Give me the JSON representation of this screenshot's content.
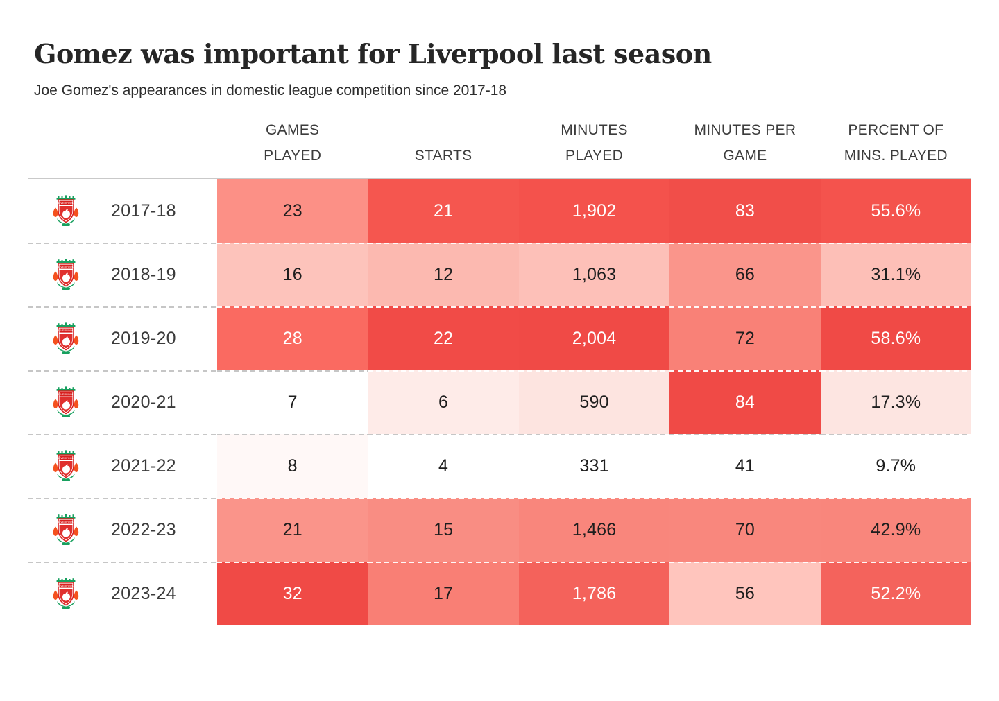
{
  "page": {
    "title": "Gomez was important for Liverpool last season",
    "subtitle": "Joe Gomez's appearances in domestic league competition since 2017-18"
  },
  "table": {
    "columns": [
      {
        "id": "games-played",
        "label": "GAMES PLAYED",
        "lines": [
          "GAMES",
          "PLAYED"
        ]
      },
      {
        "id": "starts",
        "label": "STARTS",
        "lines": [
          "STARTS"
        ]
      },
      {
        "id": "minutes-played",
        "label": "MINUTES PLAYED",
        "lines": [
          "MINUTES",
          "PLAYED"
        ]
      },
      {
        "id": "minutes-per-game",
        "label": "MINUTES PER GAME",
        "lines": [
          "MINUTES PER",
          "GAME"
        ]
      },
      {
        "id": "percent-of-mins",
        "label": "PERCENT OF MINS. PLAYED",
        "lines": [
          "PERCENT OF",
          "MINS. PLAYED"
        ]
      }
    ],
    "rows": [
      {
        "season": "2017-18",
        "club_icon": "liverpool-crest",
        "values": [
          {
            "text": "23",
            "bg": "#FC9086",
            "fg": "#1e1e1e"
          },
          {
            "text": "21",
            "bg": "#F5564F",
            "fg": "#ffffff"
          },
          {
            "text": "1,902",
            "bg": "#F4524C",
            "fg": "#ffffff"
          },
          {
            "text": "83",
            "bg": "#F14E49",
            "fg": "#ffffff"
          },
          {
            "text": "55.6%",
            "bg": "#F4534D",
            "fg": "#ffffff"
          }
        ]
      },
      {
        "season": "2018-19",
        "club_icon": "liverpool-crest",
        "values": [
          {
            "text": "16",
            "bg": "#FDC3BB",
            "fg": "#1e1e1e"
          },
          {
            "text": "12",
            "bg": "#FCB9B0",
            "fg": "#1e1e1e"
          },
          {
            "text": "1,063",
            "bg": "#FDC0B8",
            "fg": "#1e1e1e"
          },
          {
            "text": "66",
            "bg": "#FA958B",
            "fg": "#1e1e1e"
          },
          {
            "text": "31.1%",
            "bg": "#FDBFB7",
            "fg": "#1e1e1e"
          }
        ]
      },
      {
        "season": "2019-20",
        "club_icon": "liverpool-crest",
        "values": [
          {
            "text": "28",
            "bg": "#FA6A61",
            "fg": "#ffffff"
          },
          {
            "text": "22",
            "bg": "#F14B47",
            "fg": "#ffffff"
          },
          {
            "text": "2,004",
            "bg": "#F04A46",
            "fg": "#ffffff"
          },
          {
            "text": "72",
            "bg": "#F98177",
            "fg": "#1e1e1e"
          },
          {
            "text": "58.6%",
            "bg": "#F04A46",
            "fg": "#ffffff"
          }
        ]
      },
      {
        "season": "2020-21",
        "club_icon": "liverpool-crest",
        "values": [
          {
            "text": "7",
            "bg": "#FFFFFF",
            "fg": "#1e1e1e"
          },
          {
            "text": "6",
            "bg": "#FEEBE8",
            "fg": "#1e1e1e"
          },
          {
            "text": "590",
            "bg": "#FDE4E0",
            "fg": "#1e1e1e"
          },
          {
            "text": "84",
            "bg": "#F04A46",
            "fg": "#ffffff"
          },
          {
            "text": "17.3%",
            "bg": "#FDE5E1",
            "fg": "#1e1e1e"
          }
        ]
      },
      {
        "season": "2021-22",
        "club_icon": "liverpool-crest",
        "values": [
          {
            "text": "8",
            "bg": "#FFF8F7",
            "fg": "#1e1e1e"
          },
          {
            "text": "4",
            "bg": "#FFFFFF",
            "fg": "#1e1e1e"
          },
          {
            "text": "331",
            "bg": "#FFFFFF",
            "fg": "#1e1e1e"
          },
          {
            "text": "41",
            "bg": "#FFFFFF",
            "fg": "#1e1e1e"
          },
          {
            "text": "9.7%",
            "bg": "#FFFFFF",
            "fg": "#1e1e1e"
          }
        ]
      },
      {
        "season": "2022-23",
        "club_icon": "liverpool-crest",
        "values": [
          {
            "text": "21",
            "bg": "#FA948A",
            "fg": "#1e1e1e"
          },
          {
            "text": "15",
            "bg": "#F98D83",
            "fg": "#1e1e1e"
          },
          {
            "text": "1,466",
            "bg": "#F9867C",
            "fg": "#1e1e1e"
          },
          {
            "text": "70",
            "bg": "#F9877D",
            "fg": "#1e1e1e"
          },
          {
            "text": "42.9%",
            "bg": "#F9867C",
            "fg": "#1e1e1e"
          }
        ]
      },
      {
        "season": "2023-24",
        "club_icon": "liverpool-crest",
        "values": [
          {
            "text": "32",
            "bg": "#F04A46",
            "fg": "#ffffff"
          },
          {
            "text": "17",
            "bg": "#F97F75",
            "fg": "#1e1e1e"
          },
          {
            "text": "1,786",
            "bg": "#F4625B",
            "fg": "#ffffff"
          },
          {
            "text": "56",
            "bg": "#FFC5BD",
            "fg": "#1e1e1e"
          },
          {
            "text": "52.2%",
            "bg": "#F4635C",
            "fg": "#ffffff"
          }
        ]
      }
    ]
  },
  "style": {
    "accent_red": "#F04A46",
    "cell_min_color": "#FFFFFF",
    "header_underline_gray": "#C9C9C9",
    "label_separator_gray": "#C6C6C6",
    "cell_separator_white": "#FFFFFF",
    "crest_green": "#18A05F",
    "crest_red": "#D8201F",
    "crest_flame_orange": "#F4511E"
  },
  "chart_data": {
    "type": "heatmap",
    "title": "Gomez was important for Liverpool last season",
    "subtitle": "Joe Gomez's appearances in domestic league competition since 2017-18",
    "row_categories": [
      "2017-18",
      "2018-19",
      "2019-20",
      "2020-21",
      "2021-22",
      "2022-23",
      "2023-24"
    ],
    "column_categories": [
      "GAMES PLAYED",
      "STARTS",
      "MINUTES PLAYED",
      "MINUTES PER GAME",
      "PERCENT OF MINS. PLAYED"
    ],
    "values": [
      [
        23,
        21,
        1902,
        83,
        55.6
      ],
      [
        16,
        12,
        1063,
        66,
        31.1
      ],
      [
        28,
        22,
        2004,
        72,
        58.6
      ],
      [
        7,
        6,
        590,
        84,
        17.3
      ],
      [
        8,
        4,
        331,
        41,
        9.7
      ],
      [
        21,
        15,
        1466,
        70,
        42.9
      ],
      [
        32,
        17,
        1786,
        56,
        52.2
      ]
    ],
    "color_scale": {
      "min": "#FFFFFF",
      "max": "#F04A46",
      "normalization": "per-column"
    },
    "legend": "none",
    "grid": "dashed-row-separators"
  }
}
